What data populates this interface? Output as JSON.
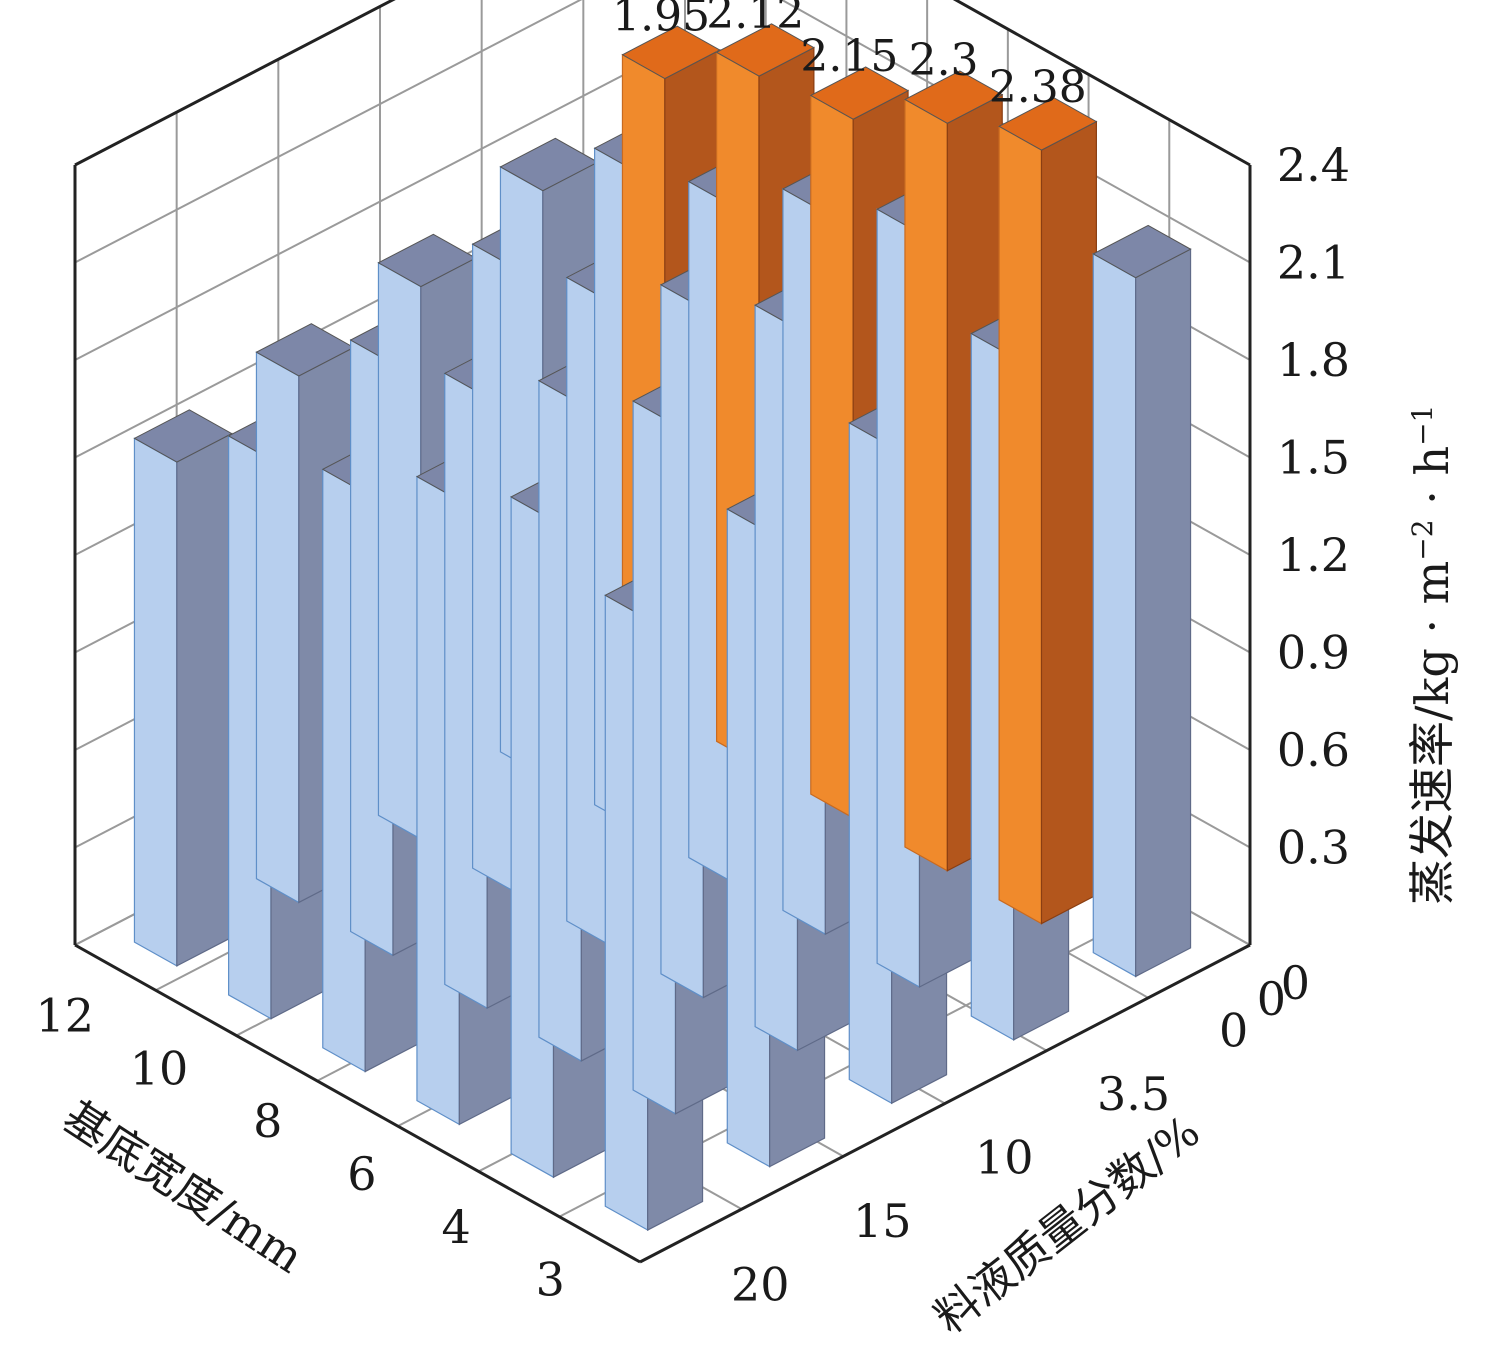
{
  "chart_data": {
    "type": "bar3d",
    "title": "",
    "xlabel": "基底宽度/mm",
    "zlabel": "料液质量分数/%",
    "ylabel": "蒸发速率/kg · m⁻² · h⁻¹",
    "ylabel_parts": {
      "main": "蒸发速率/kg · m",
      "exp1": "−2",
      "mid": " · h",
      "exp2": "−1"
    },
    "x_categories": [
      "12",
      "10",
      "8",
      "6",
      "4",
      "3"
    ],
    "z_categories": [
      "0",
      "3.5",
      "10",
      "15",
      "20"
    ],
    "y_ticks": [
      "0",
      "0.3",
      "0.6",
      "0.9",
      "1.2",
      "1.5",
      "1.8",
      "2.1",
      "2.4"
    ],
    "y_min_label": "0",
    "ylim": [
      0,
      2.4
    ],
    "grid": true,
    "colors": {
      "normal_front": "#b7cfee",
      "normal_side": "#7f8aa8",
      "normal_top": "#7d87a8",
      "highlight_front": "#f08a2c",
      "highlight_side": "#b3561c",
      "highlight_top": "#e06a1a"
    },
    "series": [
      {
        "z": "0",
        "values": [
          1.95,
          2.12,
          2.15,
          2.3,
          2.38,
          2.15
        ]
      },
      {
        "z": "3.5",
        "values": [
          1.8,
          2.02,
          2.08,
          2.22,
          2.32,
          2.1
        ]
      },
      {
        "z": "10",
        "values": [
          1.7,
          1.92,
          1.98,
          2.12,
          2.22,
          2.02
        ]
      },
      {
        "z": "15",
        "values": [
          1.62,
          1.82,
          1.88,
          2.02,
          2.12,
          1.95
        ]
      },
      {
        "z": "20",
        "values": [
          1.55,
          1.72,
          1.78,
          1.92,
          2.02,
          1.88
        ]
      }
    ],
    "highlighted_bars": [
      {
        "x": "12",
        "z": "0",
        "label": "1.95"
      },
      {
        "x": "10",
        "z": "0",
        "label": "2.12"
      },
      {
        "x": "8",
        "z": "0",
        "label": "2.15"
      },
      {
        "x": "6",
        "z": "0",
        "label": "2.3"
      },
      {
        "x": "4",
        "z": "0",
        "label": "2.38"
      }
    ]
  }
}
